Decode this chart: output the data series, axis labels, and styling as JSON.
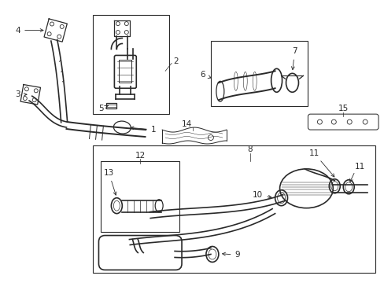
{
  "bg_color": "#ffffff",
  "lc": "#2a2a2a",
  "figsize": [
    4.89,
    3.6
  ],
  "dpi": 100,
  "boxes": {
    "cat_detail": [
      120,
      18,
      215,
      145
    ],
    "pipe_detail": [
      270,
      55,
      390,
      135
    ],
    "muffler_assembly": [
      118,
      185,
      478,
      345
    ],
    "flex_detail": [
      128,
      200,
      228,
      295
    ]
  },
  "labels": {
    "1": [
      185,
      168,
      "←"
    ],
    "2": [
      220,
      78,
      ""
    ],
    "3": [
      28,
      118,
      "→"
    ],
    "4": [
      28,
      38,
      "→"
    ],
    "5": [
      138,
      138,
      "→"
    ],
    "6": [
      258,
      95,
      "→"
    ],
    "7": [
      358,
      68,
      "↓"
    ],
    "8": [
      318,
      188,
      "↑"
    ],
    "9": [
      308,
      328,
      "←"
    ],
    "10": [
      278,
      238,
      "→"
    ],
    "11a": [
      388,
      198,
      "←"
    ],
    "11b": [
      408,
      218,
      "↓"
    ],
    "12": [
      178,
      195,
      "↓"
    ],
    "13": [
      138,
      218,
      "↓"
    ],
    "14": [
      248,
      168,
      "↓"
    ],
    "15": [
      428,
      148,
      "↓"
    ]
  }
}
